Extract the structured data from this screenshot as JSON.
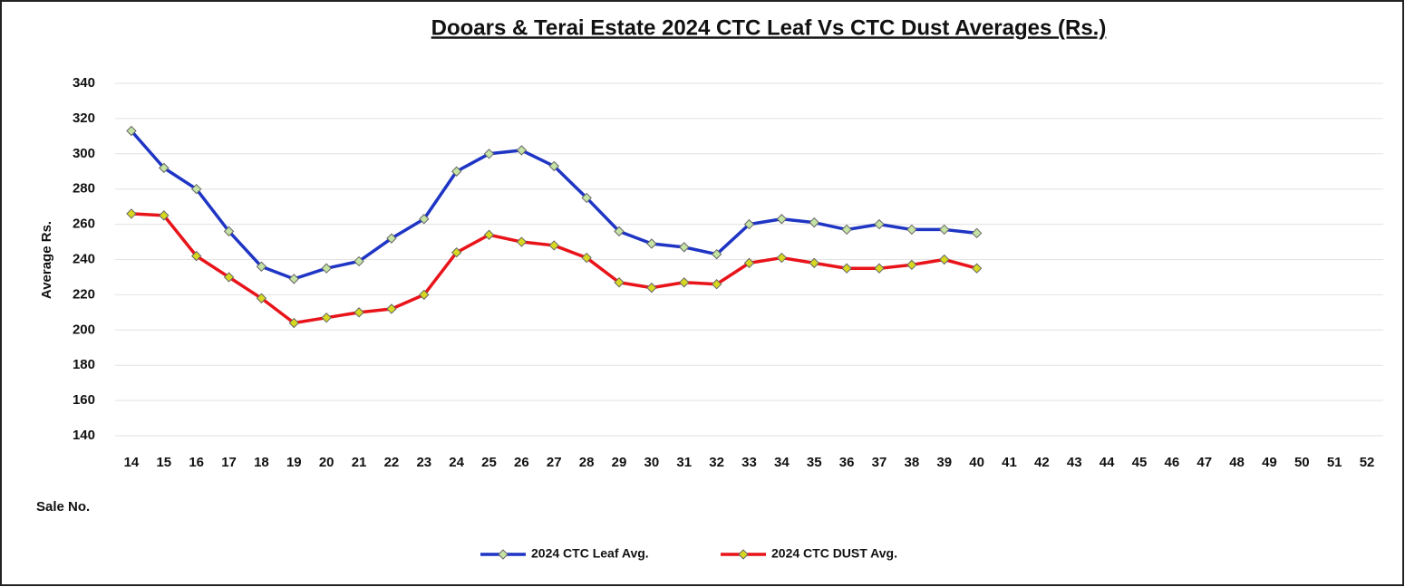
{
  "chart_data": {
    "type": "line",
    "title": "Dooars & Terai Estate 2024 CTC Leaf Vs CTC Dust Averages (Rs.)",
    "y_label": "Average Rs.",
    "x_label": "Sale No.",
    "categories": [
      "14",
      "15",
      "16",
      "17",
      "18",
      "19",
      "20",
      "21",
      "22",
      "23",
      "24",
      "25",
      "26",
      "27",
      "28",
      "29",
      "30",
      "31",
      "32",
      "33",
      "34",
      "35",
      "36",
      "37",
      "38",
      "39",
      "40",
      "41",
      "42",
      "43",
      "44",
      "45",
      "46",
      "47",
      "48",
      "49",
      "50",
      "51",
      "52"
    ],
    "series": [
      {
        "name": "2024 CTC Leaf Avg.",
        "color": "#1f35c4",
        "marker_color": "#c5e3a5",
        "values": [
          313,
          292,
          280,
          256,
          236,
          229,
          235,
          239,
          252,
          263,
          290,
          300,
          302,
          293,
          275,
          256,
          249,
          247,
          243,
          260,
          263,
          261,
          257,
          260,
          257,
          257,
          255,
          null,
          null,
          null,
          null,
          null,
          null,
          null,
          null,
          null,
          null,
          null,
          null
        ]
      },
      {
        "name": "2024 CTC DUST Avg.",
        "color": "#e8141a",
        "marker_color": "#d8d820",
        "values": [
          266,
          265,
          242,
          230,
          218,
          204,
          207,
          210,
          212,
          220,
          244,
          254,
          250,
          248,
          241,
          227,
          224,
          227,
          226,
          238,
          241,
          238,
          235,
          235,
          237,
          240,
          235,
          null,
          null,
          null,
          null,
          null,
          null,
          null,
          null,
          null,
          null,
          null,
          null
        ]
      }
    ],
    "ylim": [
      140,
      340
    ],
    "yticks": [
      140,
      160,
      180,
      200,
      220,
      240,
      260,
      280,
      300,
      320,
      340
    ],
    "grid": true,
    "legend": "bottom"
  }
}
